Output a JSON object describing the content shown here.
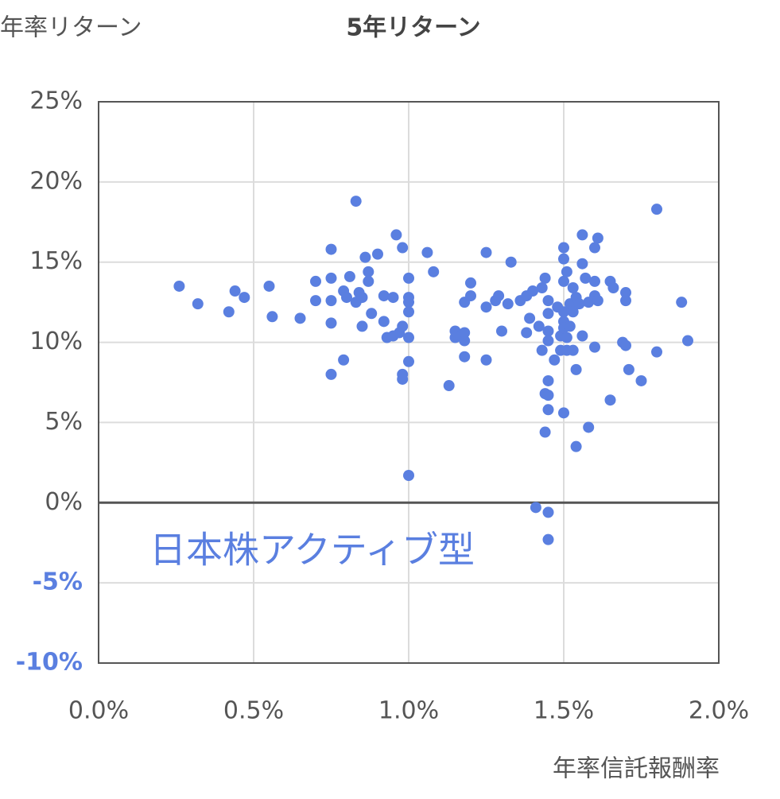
{
  "chart_data": {
    "type": "scatter",
    "title": "5年リターン",
    "y_label": "年率リターン",
    "x_label": "年率信託報酬率",
    "annotation": "日本株アクティブ型",
    "color": "#5a7fe0",
    "grid": true,
    "xlim": [
      0,
      2
    ],
    "xticks": [
      {
        "value": 0,
        "label": "0.0%"
      },
      {
        "value": 0.5,
        "label": "0.5%"
      },
      {
        "value": 1,
        "label": "1.0%"
      },
      {
        "value": 1.5,
        "label": "1.5%"
      },
      {
        "value": 2,
        "label": "2.0%"
      }
    ],
    "ylim": [
      -10,
      25
    ],
    "yticks": [
      {
        "value": -10,
        "label": "-10%"
      },
      {
        "value": -5,
        "label": "-5%"
      },
      {
        "value": 0,
        "label": "0%"
      },
      {
        "value": 5,
        "label": "5%"
      },
      {
        "value": 10,
        "label": "10%"
      },
      {
        "value": 15,
        "label": "15%"
      },
      {
        "value": 20,
        "label": "20%"
      },
      {
        "value": 25,
        "label": "25%"
      }
    ],
    "x": [
      0.26,
      0.32,
      0.42,
      0.44,
      0.47,
      0.55,
      0.56,
      0.65,
      0.7,
      0.7,
      0.75,
      0.75,
      0.75,
      0.75,
      0.75,
      0.79,
      0.79,
      0.8,
      0.81,
      0.83,
      0.83,
      0.84,
      0.85,
      0.85,
      0.86,
      0.87,
      0.87,
      0.88,
      0.9,
      0.92,
      0.92,
      0.93,
      0.95,
      0.95,
      0.96,
      0.97,
      0.98,
      0.98,
      0.98,
      0.98,
      1.0,
      1.0,
      1.0,
      1.0,
      1.0,
      1.0,
      1.0,
      1.06,
      1.08,
      1.13,
      1.15,
      1.15,
      1.17,
      1.18,
      1.18,
      1.18,
      1.18,
      1.2,
      1.2,
      1.25,
      1.25,
      1.25,
      1.28,
      1.29,
      1.3,
      1.32,
      1.33,
      1.36,
      1.38,
      1.38,
      1.39,
      1.4,
      1.41,
      1.42,
      1.43,
      1.43,
      1.44,
      1.44,
      1.44,
      1.45,
      1.45,
      1.45,
      1.45,
      1.45,
      1.45,
      1.45,
      1.45,
      1.45,
      1.47,
      1.48,
      1.49,
      1.49,
      1.5,
      1.5,
      1.5,
      1.5,
      1.5,
      1.5,
      1.5,
      1.51,
      1.51,
      1.51,
      1.52,
      1.52,
      1.53,
      1.53,
      1.53,
      1.54,
      1.54,
      1.54,
      1.55,
      1.56,
      1.56,
      1.56,
      1.57,
      1.58,
      1.58,
      1.6,
      1.6,
      1.6,
      1.6,
      1.61,
      1.61,
      1.65,
      1.65,
      1.66,
      1.69,
      1.7,
      1.7,
      1.7,
      1.71,
      1.75,
      1.8,
      1.8,
      1.88,
      1.9
    ],
    "values": [
      13.5,
      12.4,
      11.9,
      13.2,
      12.8,
      13.5,
      11.6,
      11.5,
      13.8,
      12.6,
      14.0,
      15.8,
      12.6,
      11.2,
      8.0,
      8.9,
      13.2,
      12.8,
      14.1,
      18.8,
      12.5,
      13.1,
      11.0,
      12.8,
      15.3,
      14.4,
      13.8,
      11.8,
      15.5,
      12.9,
      11.3,
      10.3,
      12.8,
      10.4,
      16.7,
      10.6,
      15.9,
      8.0,
      7.7,
      11.0,
      14.0,
      12.8,
      12.5,
      11.9,
      10.3,
      8.8,
      1.7,
      15.6,
      14.4,
      7.3,
      10.3,
      10.7,
      10.4,
      10.1,
      9.1,
      10.6,
      12.5,
      13.7,
      12.9,
      12.2,
      15.6,
      8.9,
      12.6,
      12.9,
      10.7,
      12.4,
      15.0,
      12.6,
      12.9,
      10.6,
      11.5,
      13.2,
      -0.3,
      11.0,
      13.4,
      9.5,
      14.0,
      4.4,
      6.8,
      10.7,
      10.1,
      11.8,
      12.6,
      7.6,
      5.8,
      -0.6,
      -2.3,
      6.7,
      8.9,
      12.2,
      10.4,
      9.5,
      15.9,
      15.2,
      13.8,
      11.9,
      11.3,
      10.9,
      5.6,
      14.4,
      10.3,
      9.5,
      12.4,
      11.0,
      11.9,
      13.4,
      9.5,
      12.8,
      8.3,
      3.5,
      12.4,
      14.9,
      10.4,
      16.7,
      14.0,
      12.5,
      4.7,
      15.9,
      13.8,
      12.9,
      9.7,
      16.5,
      12.6,
      13.8,
      6.4,
      13.4,
      10.0,
      13.1,
      12.6,
      9.8,
      8.3,
      7.6,
      18.3,
      9.4,
      12.5,
      10.1
    ]
  }
}
